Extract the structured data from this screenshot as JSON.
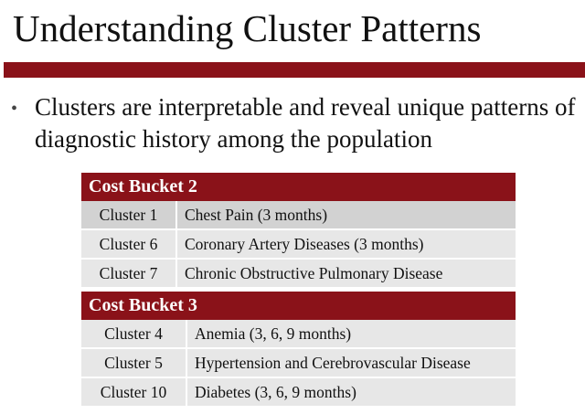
{
  "slide": {
    "title": "Understanding Cluster Patterns",
    "bullet": "Clusters are interpretable and reveal unique patterns of diagnostic history among the population",
    "bullet_symbol": "•",
    "accent_color": "#8a1219"
  },
  "tables": [
    {
      "header": "Cost Bucket 2",
      "rows": [
        {
          "cluster": "Cluster 1",
          "description": "Chest Pain (3 months)"
        },
        {
          "cluster": "Cluster 6",
          "description": "Coronary Artery Diseases (3 months)"
        },
        {
          "cluster": "Cluster 7",
          "description": "Chronic Obstructive Pulmonary Disease"
        }
      ]
    },
    {
      "header": "Cost Bucket 3",
      "rows": [
        {
          "cluster": "Cluster 4",
          "description": "Anemia (3, 6, 9 months)"
        },
        {
          "cluster": "Cluster 5",
          "description": "Hypertension and Cerebrovascular Disease"
        },
        {
          "cluster": "Cluster 10",
          "description": "Diabetes (3, 6, 9 months)"
        }
      ]
    }
  ]
}
